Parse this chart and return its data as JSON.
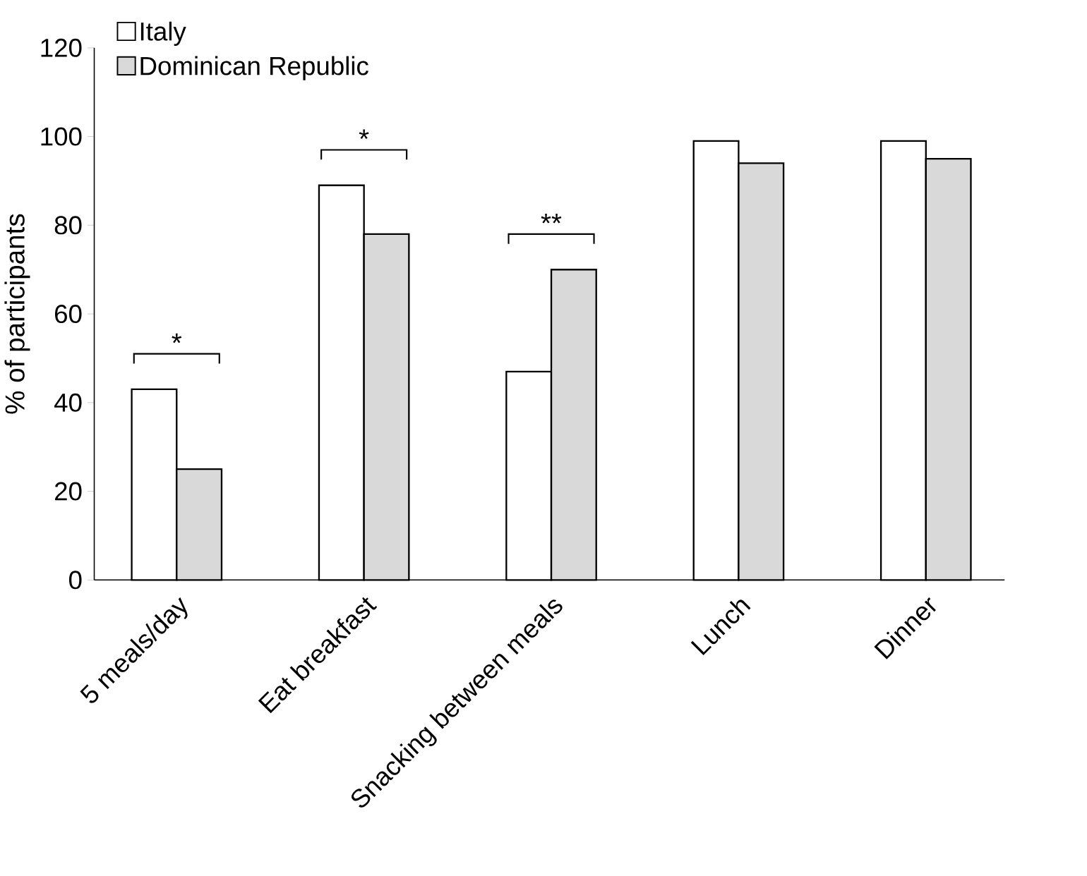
{
  "chart_data": {
    "type": "bar",
    "ylabel": "% of participants",
    "categories": [
      "5 meals/day",
      "Eat breakfast",
      "Snacking between meals",
      "Lunch",
      "Dinner"
    ],
    "series": [
      {
        "name": "Italy",
        "color": "#ffffff",
        "values": [
          43,
          89,
          47,
          99,
          99
        ]
      },
      {
        "name": "Dominican Republic",
        "color": "#d9d9d9",
        "values": [
          25,
          78,
          70,
          94,
          95
        ]
      }
    ],
    "ylim": [
      0,
      120
    ],
    "yticks": [
      0,
      20,
      40,
      60,
      80,
      100,
      120
    ],
    "grid": false,
    "legend": "top left",
    "annotations": [
      "*",
      "*",
      "**"
    ]
  }
}
